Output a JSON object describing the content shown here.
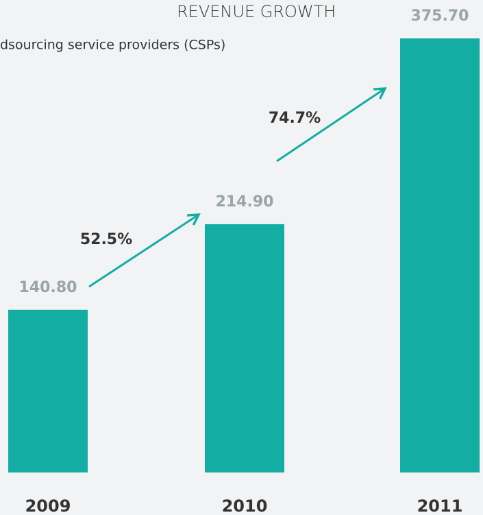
{
  "chart_data": {
    "type": "bar",
    "title": "REVENUE GROWTH",
    "subtitle": "dsourcing service providers (CSPs)",
    "categories": [
      "2009",
      "2010",
      "2011"
    ],
    "values": [
      140.8,
      214.9,
      375.7
    ],
    "value_labels": [
      "140.80",
      "214.90",
      "375.70"
    ],
    "color": "#13ada3",
    "ylim": [
      0,
      375.7
    ],
    "growth_labels": [
      "52.5%",
      "74.7%"
    ]
  }
}
